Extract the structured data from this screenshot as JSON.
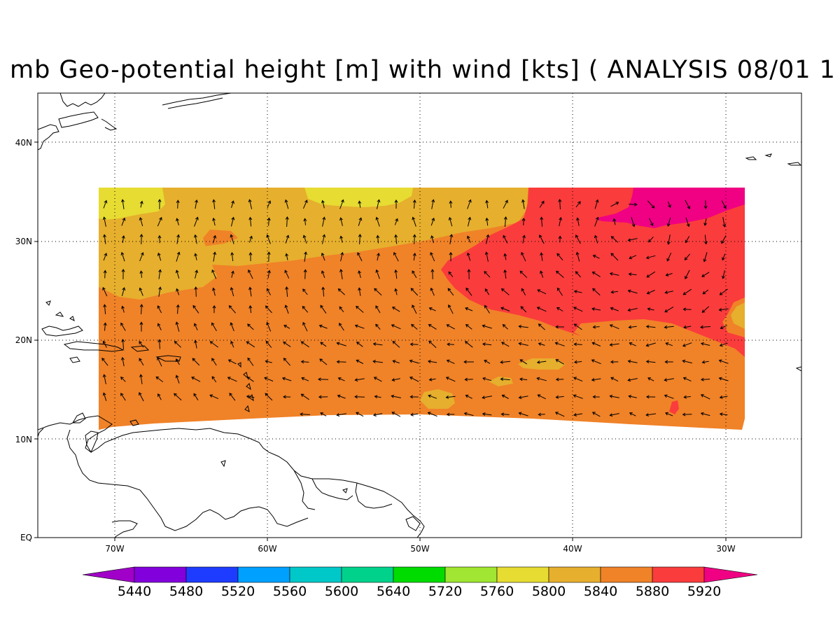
{
  "title": "mb Geo-potential height [m] with wind [kts] ( ANALYSIS 08/01 1",
  "axes": {
    "x_ticks": [
      "70W",
      "60W",
      "50W",
      "40W",
      "30W"
    ],
    "y_ticks": [
      "EQ",
      "10N",
      "20N",
      "30N",
      "40N"
    ]
  },
  "colorbar": {
    "labels": [
      "5440",
      "5480",
      "5520",
      "5560",
      "5600",
      "5640",
      "5720",
      "5760",
      "5800",
      "5840",
      "5880",
      "5920"
    ],
    "colors": [
      "#a000c8",
      "#8200dc",
      "#1e3cff",
      "#00a0ff",
      "#00c8c8",
      "#00d28c",
      "#00dc00",
      "#a0e632",
      "#e6dc32",
      "#e6af2d",
      "#f08228",
      "#fa3c3c",
      "#f00082"
    ]
  },
  "map_colors": {
    "c5800": "#e6dc32",
    "c5840": "#e6af2d",
    "c5880": "#f08228",
    "c5920": "#fa3c3c",
    "c5960": "#f00082"
  },
  "icons": [
    "wind-arrow-icon",
    "coastline-map"
  ]
}
